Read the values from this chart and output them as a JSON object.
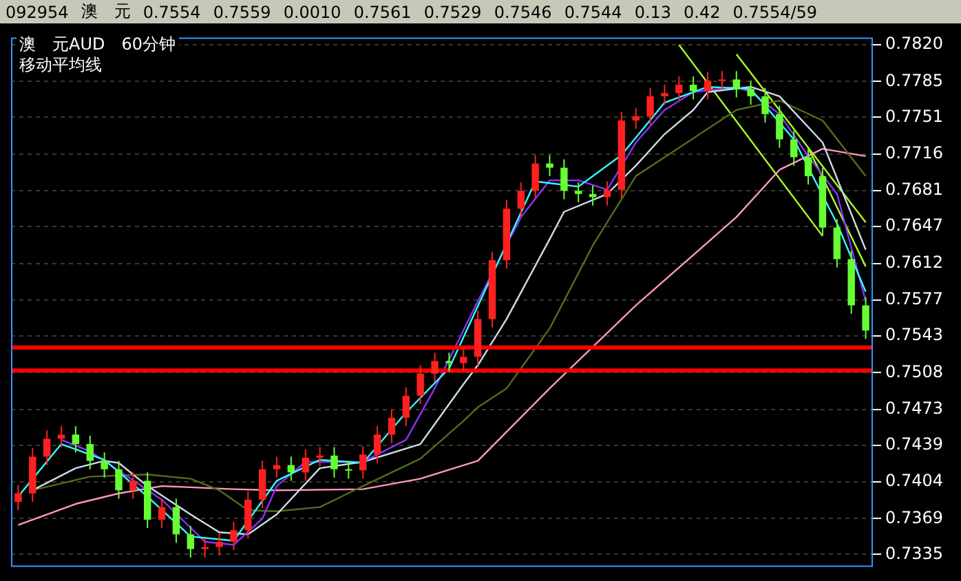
{
  "chart_data": {
    "type": "candlestick",
    "title": "澳　元AUD　60分钟",
    "subtitle": "移动平均线",
    "annotations": [
      "092954",
      "澳　元",
      "0.7554",
      "0.7559",
      "0.0010",
      "0.7561",
      "0.7529",
      "0.7546",
      "0.7544",
      "0.13",
      "0.42",
      "0.7554/59"
    ],
    "categories": [
      null,
      null,
      null,
      null,
      null,
      null,
      null,
      null,
      null,
      null,
      null,
      null,
      null,
      null,
      null,
      null,
      null,
      null,
      null,
      null,
      null,
      null,
      null,
      null,
      null,
      null,
      null,
      null,
      null,
      null,
      null,
      null,
      null,
      null,
      null,
      null,
      null,
      null,
      null,
      null,
      null,
      null,
      null,
      null,
      null,
      null,
      null,
      null,
      null,
      null,
      null,
      null,
      null,
      null,
      null,
      null,
      null,
      null,
      null,
      null
    ],
    "ohlc": [
      [
        0.7385,
        0.7401,
        0.7377,
        0.7393
      ],
      [
        0.7393,
        0.7436,
        0.7385,
        0.7428
      ],
      [
        0.7428,
        0.7453,
        0.742,
        0.7445
      ],
      [
        0.7445,
        0.7457,
        0.7437,
        0.7449
      ],
      [
        0.7449,
        0.7457,
        0.7432,
        0.744
      ],
      [
        0.744,
        0.7448,
        0.7416,
        0.7424
      ],
      [
        0.7424,
        0.7432,
        0.7408,
        0.7416
      ],
      [
        0.7416,
        0.7424,
        0.7388,
        0.7396
      ],
      [
        0.7396,
        0.7413,
        0.7388,
        0.7405
      ],
      [
        0.7405,
        0.7413,
        0.736,
        0.7368
      ],
      [
        0.7368,
        0.7388,
        0.736,
        0.738
      ],
      [
        0.738,
        0.7388,
        0.7346,
        0.7354
      ],
      [
        0.7354,
        0.7362,
        0.7332,
        0.734
      ],
      [
        0.734,
        0.735,
        0.7332,
        0.7342
      ],
      [
        0.7342,
        0.7355,
        0.7334,
        0.7347
      ],
      [
        0.7347,
        0.7366,
        0.7339,
        0.7358
      ],
      [
        0.7358,
        0.7395,
        0.735,
        0.7387
      ],
      [
        0.7387,
        0.7424,
        0.7379,
        0.7416
      ],
      [
        0.7416,
        0.7428,
        0.7408,
        0.742
      ],
      [
        0.742,
        0.7428,
        0.7405,
        0.7413
      ],
      [
        0.7413,
        0.7435,
        0.7405,
        0.7427
      ],
      [
        0.7427,
        0.7437,
        0.7419,
        0.7429
      ],
      [
        0.7429,
        0.7437,
        0.7408,
        0.7416
      ],
      [
        0.7416,
        0.7424,
        0.7407,
        0.7415
      ],
      [
        0.7415,
        0.7438,
        0.7407,
        0.743
      ],
      [
        0.743,
        0.7457,
        0.7422,
        0.7449
      ],
      [
        0.7449,
        0.7473,
        0.7441,
        0.7465
      ],
      [
        0.7465,
        0.7494,
        0.7457,
        0.7486
      ],
      [
        0.7486,
        0.7515,
        0.7478,
        0.7507
      ],
      [
        0.7507,
        0.7527,
        0.7499,
        0.7519
      ],
      [
        0.7519,
        0.7527,
        0.7509,
        0.7517
      ],
      [
        0.7517,
        0.7531,
        0.7509,
        0.7523
      ],
      [
        0.7523,
        0.7567,
        0.7515,
        0.7559
      ],
      [
        0.7559,
        0.7623,
        0.7551,
        0.7615
      ],
      [
        0.7615,
        0.7672,
        0.7607,
        0.7664
      ],
      [
        0.7664,
        0.7689,
        0.7656,
        0.7681
      ],
      [
        0.7681,
        0.7715,
        0.7673,
        0.7707
      ],
      [
        0.7707,
        0.7715,
        0.7695,
        0.7703
      ],
      [
        0.7703,
        0.7711,
        0.7673,
        0.7681
      ],
      [
        0.7681,
        0.7689,
        0.767,
        0.7678
      ],
      [
        0.7678,
        0.7686,
        0.7667,
        0.7675
      ],
      [
        0.7675,
        0.769,
        0.7667,
        0.7682
      ],
      [
        0.7682,
        0.7756,
        0.7674,
        0.7748
      ],
      [
        0.7748,
        0.776,
        0.774,
        0.7752
      ],
      [
        0.7752,
        0.7779,
        0.7744,
        0.7771
      ],
      [
        0.7771,
        0.7782,
        0.7763,
        0.7774
      ],
      [
        0.7774,
        0.779,
        0.7766,
        0.7782
      ],
      [
        0.7782,
        0.779,
        0.7768,
        0.7776
      ],
      [
        0.7776,
        0.7794,
        0.7768,
        0.7786
      ],
      [
        0.7786,
        0.7795,
        0.7778,
        0.7787
      ],
      [
        0.7787,
        0.7795,
        0.777,
        0.7778
      ],
      [
        0.7778,
        0.7786,
        0.7763,
        0.7771
      ],
      [
        0.7771,
        0.7779,
        0.7746,
        0.7754
      ],
      [
        0.7754,
        0.7762,
        0.7722,
        0.773
      ],
      [
        0.773,
        0.7738,
        0.7705,
        0.7713
      ],
      [
        0.7713,
        0.7721,
        0.7687,
        0.7695
      ],
      [
        0.7695,
        0.7703,
        0.7638,
        0.7646
      ],
      [
        0.7646,
        0.7654,
        0.7608,
        0.7616
      ],
      [
        0.7616,
        0.7624,
        0.7564,
        0.7572
      ],
      [
        0.7572,
        0.758,
        0.754,
        0.7548
      ]
    ],
    "colors": [
      "#ff2020",
      "#ff2020",
      "#ff2020",
      "#ff2020",
      "#66ff33",
      "#66ff33",
      "#66ff33",
      "#66ff33",
      "#ff2020",
      "#66ff33",
      "#ff2020",
      "#66ff33",
      "#66ff33",
      "#ff2020",
      "#ff2020",
      "#ff2020",
      "#ff2020",
      "#ff2020",
      "#ff2020",
      "#66ff33",
      "#ff2020",
      "#ff2020",
      "#66ff33",
      "#66ff33",
      "#ff2020",
      "#ff2020",
      "#ff2020",
      "#ff2020",
      "#ff2020",
      "#ff2020",
      "#66ff33",
      "#ff2020",
      "#ff2020",
      "#ff2020",
      "#ff2020",
      "#ff2020",
      "#ff2020",
      "#66ff33",
      "#66ff33",
      "#66ff33",
      "#66ff33",
      "#ff2020",
      "#ff2020",
      "#ff2020",
      "#ff2020",
      "#ff2020",
      "#ff2020",
      "#66ff33",
      "#ff2020",
      "#ff2020",
      "#66ff33",
      "#66ff33",
      "#66ff33",
      "#66ff33",
      "#66ff33",
      "#66ff33",
      "#66ff33",
      "#66ff33",
      "#66ff33",
      "#66ff33"
    ],
    "series": [
      {
        "type": "line",
        "color": "#33ffff",
        "values": [
          0.739,
          null,
          null,
          0.744,
          null,
          null,
          0.7425,
          null,
          null,
          0.739,
          null,
          null,
          0.7352,
          null,
          null,
          0.7348,
          null,
          null,
          0.7405,
          null,
          null,
          0.7425,
          null,
          null,
          0.7422,
          null,
          null,
          0.747,
          null,
          null,
          0.7512,
          null,
          null,
          null,
          null,
          null,
          0.769,
          null,
          null,
          0.7685,
          null,
          null,
          0.7715,
          null,
          null,
          0.7765,
          null,
          null,
          0.778,
          null,
          null,
          0.7778,
          null,
          null,
          0.773,
          null,
          null,
          0.765,
          null,
          0.7585
        ]
      },
      {
        "type": "line",
        "color": "#8833ff",
        "values": [
          null,
          null,
          null,
          0.7444,
          null,
          0.7433,
          null,
          null,
          null,
          null,
          0.7387,
          null,
          null,
          0.7347,
          null,
          0.7344,
          null,
          0.7369,
          0.74,
          null,
          0.7423,
          null,
          null,
          null,
          0.7423,
          null,
          null,
          0.7444,
          null,
          0.7493,
          null,
          null,
          0.7576,
          null,
          null,
          0.7656,
          null,
          0.7691,
          null,
          0.7691,
          null,
          0.7682,
          null,
          0.7727,
          null,
          0.7758,
          null,
          0.7775,
          null,
          null,
          0.778,
          0.7775,
          null,
          0.7754,
          null,
          0.7714,
          null,
          0.7678,
          null,
          0.7576
        ]
      },
      {
        "type": "line",
        "color": "#ccdde8",
        "values": [
          null,
          0.7396,
          null,
          null,
          0.7417,
          null,
          0.7424,
          0.7422,
          null,
          0.74,
          null,
          null,
          0.7373,
          null,
          0.7356,
          null,
          0.7354,
          null,
          0.7373,
          null,
          null,
          0.7417,
          null,
          null,
          0.7423,
          null,
          null,
          null,
          0.744,
          null,
          null,
          0.7497,
          0.7515,
          null,
          0.7559,
          null,
          null,
          0.7635,
          0.7661,
          null,
          null,
          0.7678,
          null,
          0.7705,
          null,
          0.7735,
          null,
          0.7758,
          0.7775,
          null,
          null,
          0.778,
          null,
          0.7771,
          null,
          null,
          0.7727,
          null,
          null,
          0.7625
        ]
      },
      {
        "type": "line",
        "color": "#556b1f",
        "values": [
          null,
          0.7396,
          null,
          null,
          null,
          0.7409,
          null,
          null,
          null,
          0.7411,
          null,
          null,
          0.7407,
          null,
          0.7396,
          null,
          0.7377,
          null,
          0.7376,
          null,
          null,
          0.738,
          null,
          null,
          0.74,
          null,
          null,
          null,
          0.7426,
          null,
          null,
          0.7462,
          0.7475,
          null,
          0.7493,
          null,
          null,
          0.755,
          null,
          null,
          0.7629,
          null,
          null,
          0.7695,
          null,
          null,
          null,
          0.7731,
          null,
          null,
          0.7758,
          null,
          null,
          0.7767,
          null,
          null,
          0.7748,
          null,
          null,
          0.7695
        ]
      },
      {
        "type": "line",
        "color": "#ff99bb",
        "values": [
          0.7363,
          null,
          null,
          null,
          0.7383,
          null,
          null,
          0.7393,
          null,
          null,
          0.74,
          null,
          null,
          null,
          null,
          0.7397,
          null,
          null,
          0.7396,
          null,
          null,
          null,
          null,
          null,
          0.7397,
          null,
          null,
          null,
          0.7407,
          null,
          null,
          null,
          0.7424,
          null,
          null,
          null,
          null,
          0.7493,
          null,
          null,
          null,
          null,
          null,
          0.7572,
          null,
          null,
          null,
          null,
          null,
          null,
          0.7656,
          null,
          null,
          0.7701,
          null,
          null,
          0.7721,
          null,
          null,
          0.7714
        ]
      },
      {
        "type": "line",
        "color": "#aaff22",
        "values": [
          null,
          null,
          null,
          null,
          null,
          null,
          null,
          null,
          null,
          null,
          null,
          null,
          null,
          null,
          null,
          null,
          null,
          null,
          null,
          null,
          null,
          null,
          null,
          null,
          null,
          null,
          null,
          null,
          null,
          null,
          null,
          null,
          null,
          null,
          null,
          null,
          null,
          null,
          null,
          null,
          null,
          null,
          null,
          null,
          null,
          null,
          0.782,
          null,
          null,
          null,
          null,
          null,
          null,
          null,
          null,
          null,
          0.7638,
          null,
          null,
          null
        ]
      },
      {
        "type": "line",
        "color": "#aaff22",
        "values": [
          null,
          null,
          null,
          null,
          null,
          null,
          null,
          null,
          null,
          null,
          null,
          null,
          null,
          null,
          null,
          null,
          null,
          null,
          null,
          null,
          null,
          null,
          null,
          null,
          null,
          null,
          null,
          null,
          null,
          null,
          null,
          null,
          null,
          null,
          null,
          null,
          null,
          null,
          null,
          null,
          null,
          null,
          null,
          null,
          null,
          null,
          null,
          null,
          null,
          null,
          0.7811,
          null,
          null,
          null,
          null,
          null,
          null,
          null,
          null,
          0.7651
        ]
      },
      {
        "type": "line",
        "color": "#aaff22",
        "values": [
          null,
          null,
          null,
          null,
          null,
          null,
          null,
          null,
          null,
          null,
          null,
          null,
          null,
          null,
          null,
          null,
          null,
          null,
          null,
          null,
          null,
          null,
          null,
          null,
          null,
          null,
          null,
          null,
          null,
          null,
          null,
          null,
          null,
          null,
          null,
          null,
          null,
          null,
          null,
          null,
          null,
          null,
          null,
          null,
          null,
          null,
          null,
          null,
          null,
          null,
          null,
          null,
          null,
          null,
          null,
          0.7722,
          null,
          null,
          null,
          0.7609
        ]
      }
    ],
    "ref_lines": [
      {
        "axis": "y",
        "value": 0.7532,
        "color": "#ff0000"
      },
      {
        "axis": "y",
        "value": 0.751,
        "color": "#ff0000"
      }
    ],
    "ylim": [
      0.7323,
      0.7827
    ],
    "yticks": [
      {
        "value": 0.782,
        "label": "0.7820"
      },
      0.7785,
      0.7751,
      0.7716,
      0.7681,
      0.7647,
      0.7612,
      0.7577,
      0.7543,
      0.7508,
      0.7473,
      0.7439,
      0.7404,
      0.7369,
      0.7335
    ],
    "tick_labels": "y",
    "grid": "y"
  }
}
